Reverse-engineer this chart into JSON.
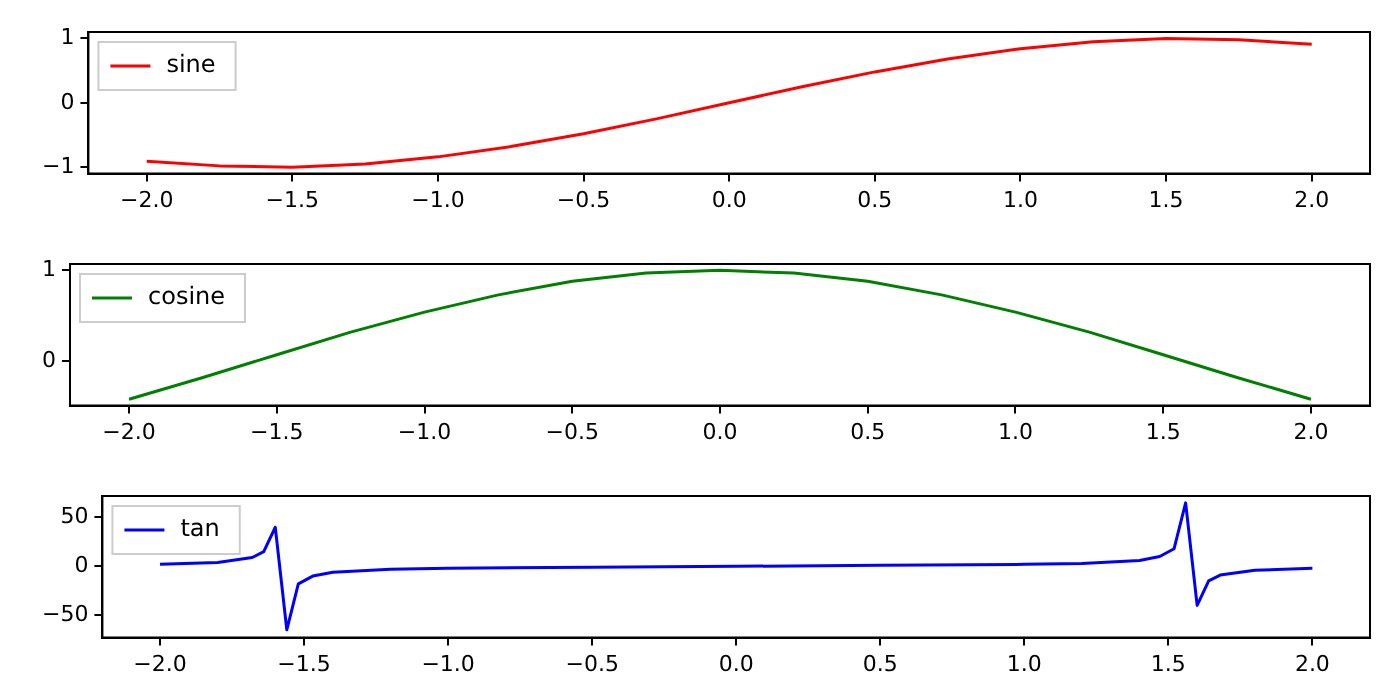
{
  "chart_data": [
    {
      "type": "line",
      "xlim": [
        -2.2,
        2.2
      ],
      "ylim": [
        -1.1,
        1.1
      ],
      "xticks": [
        {
          "value": -2,
          "label": "−2.0"
        },
        {
          "value": -1.5,
          "label": "−1.5"
        },
        {
          "value": -1,
          "label": "−1.0"
        },
        {
          "value": -0.5,
          "label": "−0.5"
        },
        {
          "value": 0,
          "label": "0.0"
        },
        {
          "value": 0.5,
          "label": "0.5"
        },
        {
          "value": 1,
          "label": "1.0"
        },
        {
          "value": 1.5,
          "label": "1.5"
        },
        {
          "value": 2,
          "label": "2.0"
        }
      ],
      "yticks": [
        {
          "value": -1,
          "label": "−1"
        },
        0,
        1
      ],
      "legend": "top left",
      "grid": false,
      "marker": "none",
      "x": [
        -2,
        -1.75,
        -1.5,
        -1.25,
        -1,
        -0.75,
        -0.5,
        -0.25,
        0,
        0.25,
        0.5,
        0.75,
        1,
        1.25,
        1.5,
        1.75,
        2
      ],
      "series": [
        {
          "name": "sine",
          "color": "#ff0000",
          "values": [
            -0.91,
            -0.98,
            -1.0,
            -0.95,
            -0.84,
            -0.68,
            -0.48,
            -0.25,
            0,
            0.25,
            0.48,
            0.68,
            0.84,
            0.95,
            1.0,
            0.98,
            0.91
          ]
        }
      ]
    },
    {
      "type": "line",
      "xlim": [
        -2.2,
        2.2
      ],
      "ylim": [
        -0.49,
        1.07
      ],
      "xticks": [
        {
          "value": -2,
          "label": "−2.0"
        },
        {
          "value": -1.5,
          "label": "−1.5"
        },
        {
          "value": -1,
          "label": "−1.0"
        },
        {
          "value": -0.5,
          "label": "−0.5"
        },
        {
          "value": 0,
          "label": "0.0"
        },
        {
          "value": 0.5,
          "label": "0.5"
        },
        {
          "value": 1,
          "label": "1.0"
        },
        {
          "value": 1.5,
          "label": "1.5"
        },
        {
          "value": 2,
          "label": "2.0"
        }
      ],
      "yticks": [
        0,
        1
      ],
      "legend": "top left",
      "grid": false,
      "marker": "none",
      "x": [
        -2,
        -1.75,
        -1.5,
        -1.25,
        -1,
        -0.75,
        -0.5,
        -0.25,
        0,
        0.25,
        0.5,
        0.75,
        1,
        1.25,
        1.5,
        1.75,
        2
      ],
      "series": [
        {
          "name": "cosine",
          "color": "#008000",
          "values": [
            -0.42,
            -0.18,
            0.07,
            0.32,
            0.54,
            0.73,
            0.88,
            0.97,
            1.0,
            0.97,
            0.88,
            0.73,
            0.54,
            0.32,
            0.07,
            -0.18,
            -0.42
          ]
        }
      ]
    },
    {
      "type": "line",
      "xlim": [
        -2.2,
        2.2
      ],
      "ylim": [
        -73,
        72
      ],
      "xticks": [
        {
          "value": -2,
          "label": "−2.0"
        },
        {
          "value": -1.5,
          "label": "−1.5"
        },
        {
          "value": -1,
          "label": "−1.0"
        },
        {
          "value": -0.5,
          "label": "−0.5"
        },
        {
          "value": 0,
          "label": "0.0"
        },
        {
          "value": 0.5,
          "label": "0.5"
        },
        {
          "value": 1,
          "label": "1.0"
        },
        {
          "value": 1.5,
          "label": "1.5"
        },
        {
          "value": 2,
          "label": "2.0"
        }
      ],
      "yticks": [
        {
          "value": -50,
          "label": "−50"
        },
        0,
        50
      ],
      "legend": "top left",
      "grid": false,
      "marker": "none",
      "x": [
        -2,
        -1.8,
        -1.68,
        -1.64,
        -1.6,
        -1.56,
        -1.52,
        -1.47,
        -1.4,
        -1.2,
        -1,
        -0.5,
        0,
        0.5,
        1,
        1.2,
        1.4,
        1.47,
        1.52,
        1.56,
        1.6,
        1.64,
        1.68,
        1.8,
        2
      ],
      "series": [
        {
          "name": "tan",
          "color": "#0000ff",
          "values": [
            2,
            4,
            9,
            15,
            40,
            -65,
            -18,
            -10,
            -6,
            -3,
            -2,
            -1,
            0,
            1,
            2,
            3,
            6,
            10,
            18,
            65,
            -40,
            -15,
            -9,
            -4,
            -2
          ]
        }
      ]
    }
  ]
}
